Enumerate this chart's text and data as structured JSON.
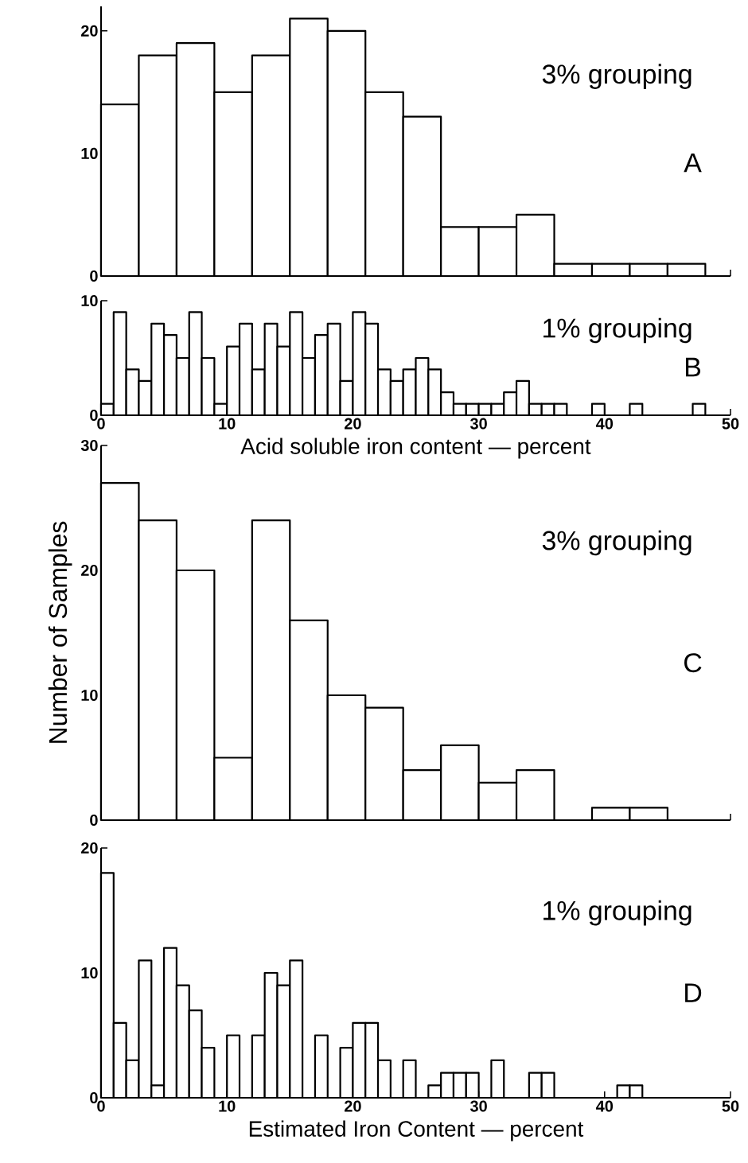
{
  "chart_data": [
    {
      "type": "histogram",
      "bins": [
        0,
        3,
        6,
        9,
        12,
        15,
        18,
        21,
        24,
        27,
        30,
        33,
        36,
        39,
        42,
        45,
        48
      ],
      "values": [
        14,
        18,
        19,
        15,
        18,
        21,
        20,
        15,
        13,
        4,
        4,
        5,
        1,
        1,
        1,
        1
      ],
      "color": "#000000",
      "xlim": [
        0,
        50
      ],
      "xticks": [
        0,
        10,
        20,
        30,
        40,
        50
      ],
      "ylim": [
        0,
        22
      ],
      "yticks": [
        0,
        10,
        20
      ],
      "tick_labels": "y",
      "annotations": [
        "3% grouping",
        "A"
      ]
    },
    {
      "type": "histogram",
      "bins": [
        0,
        1,
        2,
        3,
        4,
        5,
        6,
        7,
        8,
        9,
        10,
        11,
        12,
        13,
        14,
        15,
        16,
        17,
        18,
        19,
        20,
        21,
        22,
        23,
        24,
        25,
        26,
        27,
        28,
        29,
        30,
        31,
        32,
        33,
        34,
        35,
        36,
        37,
        38,
        39,
        40,
        41,
        42,
        43,
        44,
        45,
        46,
        47,
        48
      ],
      "values": [
        1,
        9,
        4,
        3,
        8,
        7,
        5,
        9,
        5,
        1,
        6,
        8,
        4,
        8,
        6,
        9,
        5,
        7,
        8,
        3,
        9,
        8,
        4,
        3,
        4,
        5,
        4,
        2,
        1,
        1,
        1,
        1,
        2,
        3,
        1,
        1,
        1,
        0,
        0,
        1,
        0,
        0,
        1,
        0,
        0,
        0,
        0,
        1
      ],
      "color": "#000000",
      "xlim": [
        0,
        50
      ],
      "xticks": [
        0,
        10,
        20,
        30,
        40,
        50
      ],
      "ylim": [
        0,
        10
      ],
      "yticks": [
        0,
        10
      ],
      "xlabel": "Acid soluble iron content — percent",
      "annotations": [
        "1% grouping",
        "B"
      ]
    },
    {
      "type": "histogram",
      "bins": [
        0,
        3,
        6,
        9,
        12,
        15,
        18,
        21,
        24,
        27,
        30,
        33,
        36,
        39,
        42,
        45
      ],
      "values": [
        27,
        24,
        20,
        5,
        24,
        16,
        10,
        9,
        4,
        6,
        3,
        4,
        0,
        1,
        1
      ],
      "color": "#000000",
      "xlim": [
        0,
        50
      ],
      "xticks": [
        0,
        10,
        20,
        30,
        40,
        50
      ],
      "ylim": [
        0,
        30
      ],
      "yticks": [
        0,
        10,
        20,
        30
      ],
      "tick_labels": "y",
      "ylabel": "Number of Samples",
      "annotations": [
        "3% grouping",
        "C"
      ]
    },
    {
      "type": "histogram",
      "bins": [
        0,
        1,
        2,
        3,
        4,
        5,
        6,
        7,
        8,
        9,
        10,
        11,
        12,
        13,
        14,
        15,
        16,
        17,
        18,
        19,
        20,
        21,
        22,
        23,
        24,
        25,
        26,
        27,
        28,
        29,
        30,
        31,
        32,
        33,
        34,
        35,
        36,
        37,
        38,
        39,
        40,
        41,
        42,
        43
      ],
      "values": [
        18,
        6,
        3,
        11,
        1,
        12,
        9,
        7,
        4,
        0,
        5,
        0,
        5,
        10,
        9,
        11,
        0,
        5,
        0,
        4,
        6,
        6,
        3,
        0,
        3,
        0,
        1,
        2,
        2,
        2,
        0,
        3,
        0,
        0,
        2,
        2,
        0,
        0,
        0,
        0,
        0,
        1,
        1
      ],
      "color": "#000000",
      "xlim": [
        0,
        50
      ],
      "xticks": [
        0,
        10,
        20,
        30,
        40,
        50
      ],
      "ylim": [
        0,
        20
      ],
      "yticks": [
        0,
        10,
        20
      ],
      "xlabel": "Estimated Iron Content — percent",
      "annotations": [
        "1% grouping",
        "D"
      ]
    }
  ]
}
